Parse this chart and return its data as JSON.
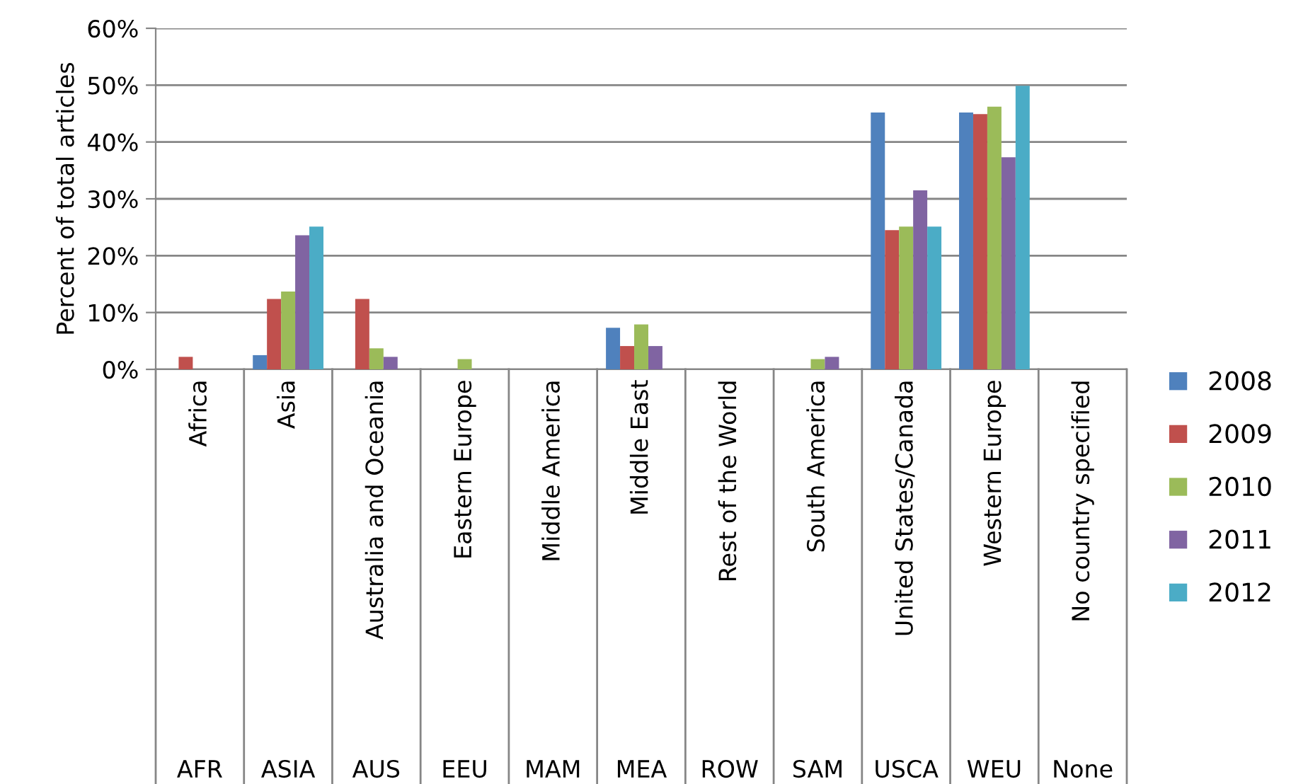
{
  "chart_data": {
    "type": "bar",
    "ylabel": "Percent of total articles",
    "categories": [
      "Africa",
      "Asia",
      "Australia and Oceania",
      "Eastern Europe",
      "Middle America",
      "Middle East",
      "Rest of the World",
      "South America",
      "United States/Canada",
      "Western Europe",
      "No country specified"
    ],
    "annotations": [
      "AFR",
      "ASIA",
      "AUS",
      "EEU",
      "MAM",
      "MEA",
      "ROW",
      "SAM",
      "USCA",
      "WEU",
      "None"
    ],
    "series": [
      {
        "name": "2008",
        "color": "#4f81bd",
        "values": [
          null,
          2.5,
          null,
          null,
          null,
          7.3,
          null,
          null,
          45.2,
          45.2,
          null
        ]
      },
      {
        "name": "2009",
        "color": "#c0504d",
        "values": [
          2.2,
          12.4,
          12.4,
          null,
          null,
          4.1,
          null,
          null,
          24.5,
          44.9,
          null
        ]
      },
      {
        "name": "2010",
        "color": "#9bbb59",
        "values": [
          null,
          13.7,
          3.7,
          1.8,
          null,
          7.9,
          null,
          1.8,
          25.1,
          46.2,
          null
        ]
      },
      {
        "name": "2011",
        "color": "#8064a2",
        "values": [
          null,
          23.6,
          2.2,
          null,
          null,
          4.1,
          null,
          2.2,
          31.5,
          37.3,
          null
        ]
      },
      {
        "name": "2012",
        "color": "#4bacc6",
        "values": [
          null,
          25.1,
          null,
          null,
          null,
          null,
          null,
          null,
          25.1,
          49.9,
          null
        ]
      }
    ],
    "ylim": [
      0,
      60
    ],
    "yticks": [
      {
        "value": 0,
        "label": "0%"
      },
      {
        "value": 10,
        "label": "10%"
      },
      {
        "value": 20,
        "label": "20%"
      },
      {
        "value": 30,
        "label": "30%"
      },
      {
        "value": 40,
        "label": "40%"
      },
      {
        "value": 50,
        "label": "50%"
      },
      {
        "value": 60,
        "label": "60%"
      }
    ],
    "grid": "y",
    "legend": "right"
  }
}
